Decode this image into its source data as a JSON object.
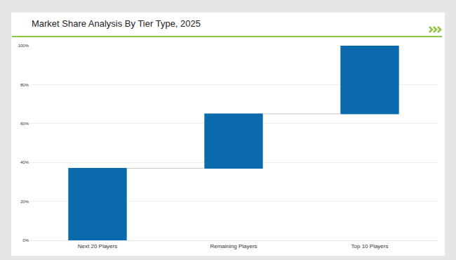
{
  "chart_data": {
    "type": "waterfall",
    "title": "Market Share Analysis By Tier Type, 2025",
    "categories": [
      "Next 20 Players",
      "Remaining Players",
      "Top 10 Players"
    ],
    "values": [
      37,
      28,
      35
    ],
    "color": "#0b6aab",
    "ylim": [
      0,
      100
    ],
    "yticks": [
      {
        "value": 0,
        "label": "0%"
      },
      {
        "value": 20,
        "label": "20%"
      },
      {
        "value": 40,
        "label": "40%"
      },
      {
        "value": 60,
        "label": "60%"
      },
      {
        "value": 80,
        "label": "80%"
      },
      {
        "value": 100,
        "label": "100%"
      }
    ],
    "grid": true
  }
}
